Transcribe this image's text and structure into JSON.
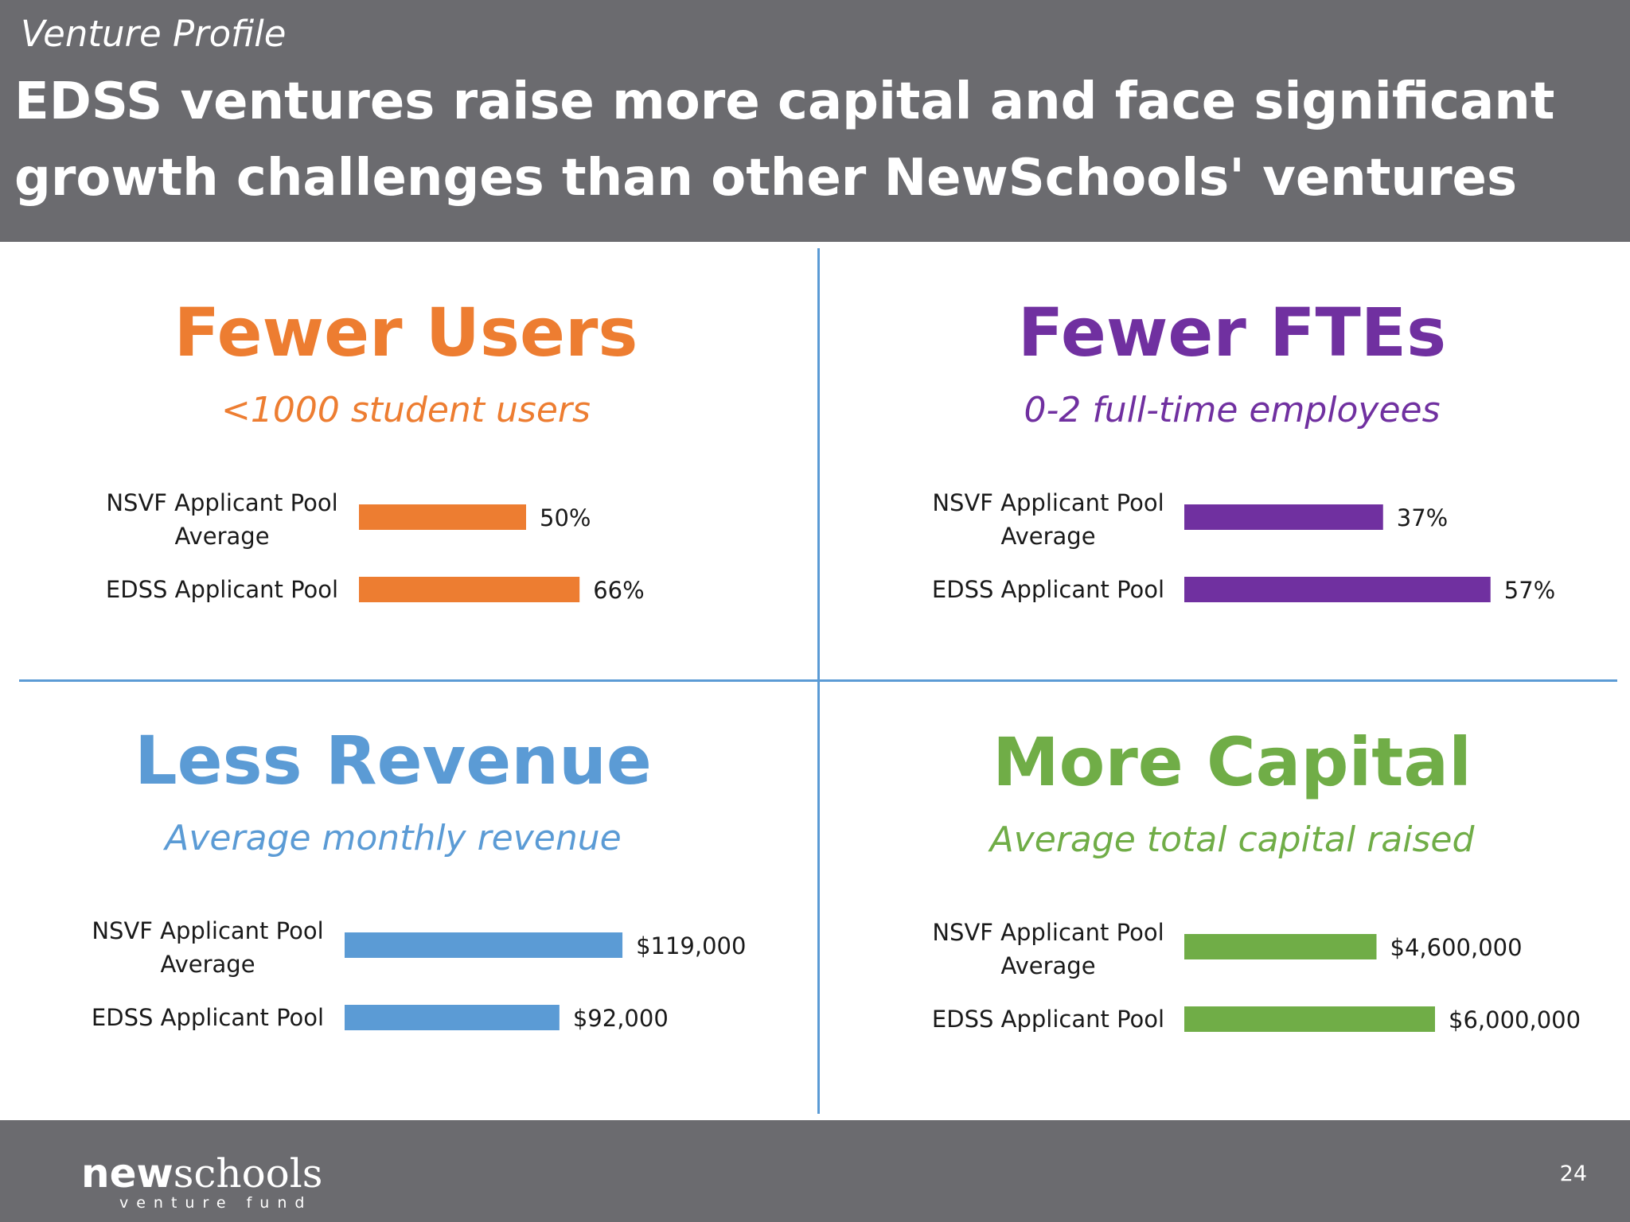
{
  "header": {
    "kicker": "Venture Profile",
    "headline": "EDSS ventures raise more capital and face significant growth challenges than other NewSchools' ventures"
  },
  "panels": [
    {
      "title": "Fewer Users",
      "subtitle": "<1000 student users",
      "color": "#ed7d31"
    },
    {
      "title": "Fewer FTEs",
      "subtitle": "0-2 full-time employees",
      "color": "#7030a0"
    },
    {
      "title": "Less Revenue",
      "subtitle": "Average monthly revenue",
      "color": "#5b9bd5"
    },
    {
      "title": "More Capital",
      "subtitle": "Average total capital raised",
      "color": "#70ad47"
    }
  ],
  "chart_data": [
    {
      "type": "bar",
      "orientation": "horizontal",
      "title": "Fewer Users",
      "subtitle": "<1000 student users",
      "categories": [
        [
          "NSVF Applicant Pool",
          "Average"
        ],
        [
          "EDSS Applicant Pool"
        ]
      ],
      "values": [
        50,
        66
      ],
      "value_labels": [
        "50%",
        "66%"
      ],
      "unit": "%",
      "xlim": [
        0,
        100
      ],
      "color": "#ed7d31"
    },
    {
      "type": "bar",
      "orientation": "horizontal",
      "title": "Fewer FTEs",
      "subtitle": "0-2 full-time employees",
      "categories": [
        [
          "NSVF Applicant Pool",
          "Average"
        ],
        [
          "EDSS Applicant Pool"
        ]
      ],
      "values": [
        37,
        57
      ],
      "value_labels": [
        "37%",
        "57%"
      ],
      "unit": "%",
      "xlim": [
        0,
        100
      ],
      "color": "#7030a0"
    },
    {
      "type": "bar",
      "orientation": "horizontal",
      "title": "Less Revenue",
      "subtitle": "Average monthly revenue",
      "categories": [
        [
          "NSVF Applicant Pool",
          "Average"
        ],
        [
          "EDSS Applicant Pool"
        ]
      ],
      "values": [
        119000,
        92000
      ],
      "value_labels": [
        "$119,000",
        "$92,000"
      ],
      "unit": "$",
      "xlim": [
        0,
        150000
      ],
      "color": "#5b9bd5"
    },
    {
      "type": "bar",
      "orientation": "horizontal",
      "title": "More Capital",
      "subtitle": "Average total capital raised",
      "categories": [
        [
          "NSVF Applicant Pool",
          "Average"
        ],
        [
          "EDSS Applicant Pool"
        ]
      ],
      "values": [
        4600000,
        6000000
      ],
      "value_labels": [
        "$4,600,000",
        "$6,000,000"
      ],
      "unit": "$",
      "xlim": [
        0,
        8000000
      ],
      "color": "#70ad47"
    }
  ],
  "footer": {
    "logo_bold": "new",
    "logo_rest": "schools",
    "logo_sub": "venture fund",
    "page_number": "24"
  }
}
